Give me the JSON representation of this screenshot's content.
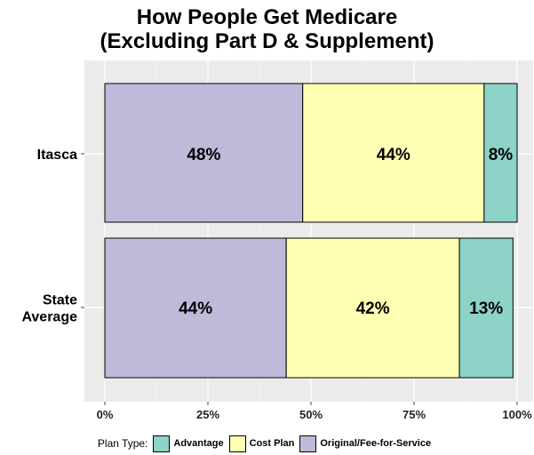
{
  "chart_data": {
    "type": "bar",
    "orientation": "horizontal",
    "stacked": true,
    "title_lines": [
      "How People Get Medicare",
      "(Excluding Part D & Supplement)"
    ],
    "categories": [
      [
        "Itasca"
      ],
      [
        "State",
        "Average"
      ]
    ],
    "series": [
      {
        "name": "Original/Fee-for-Service",
        "values": [
          48,
          44
        ],
        "labels": [
          "48%",
          "44%"
        ],
        "color": "#bebada"
      },
      {
        "name": "Cost Plan",
        "values": [
          44,
          42
        ],
        "labels": [
          "44%",
          "42%"
        ],
        "color": "#ffffb3"
      },
      {
        "name": "Advantage",
        "values": [
          8,
          13
        ],
        "labels": [
          "8%",
          "13%"
        ],
        "color": "#8dd3c7"
      }
    ],
    "xlim": [
      0,
      100
    ],
    "x_ticks": [
      0,
      25,
      50,
      75,
      100
    ],
    "x_tick_labels": [
      "0%",
      "25%",
      "50%",
      "75%",
      "100%"
    ],
    "legend": {
      "title": "Plan Type:",
      "position": "bottom",
      "entries": [
        "Advantage",
        "Cost Plan",
        "Original/Fee-for-Service"
      ]
    },
    "panel_background": "#ebebeb",
    "grid": true
  }
}
